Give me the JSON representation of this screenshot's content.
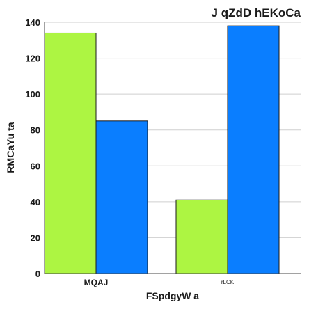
{
  "chart_data": {
    "type": "bar",
    "title": "J qZdD hEKoCa",
    "xlabel": "FSpdgyW a",
    "ylabel": "RMCaYu ta",
    "categories": [
      "MQAJ",
      "rLCK"
    ],
    "series": [
      {
        "values": [
          134,
          41
        ],
        "color": "#adf542"
      },
      {
        "values": [
          85,
          138
        ],
        "color": "#0a7eff"
      }
    ],
    "ylim": [
      0,
      140
    ],
    "yticks": [
      0,
      20,
      40,
      60,
      80,
      100,
      120,
      140
    ],
    "grid": true,
    "legend": "none"
  }
}
